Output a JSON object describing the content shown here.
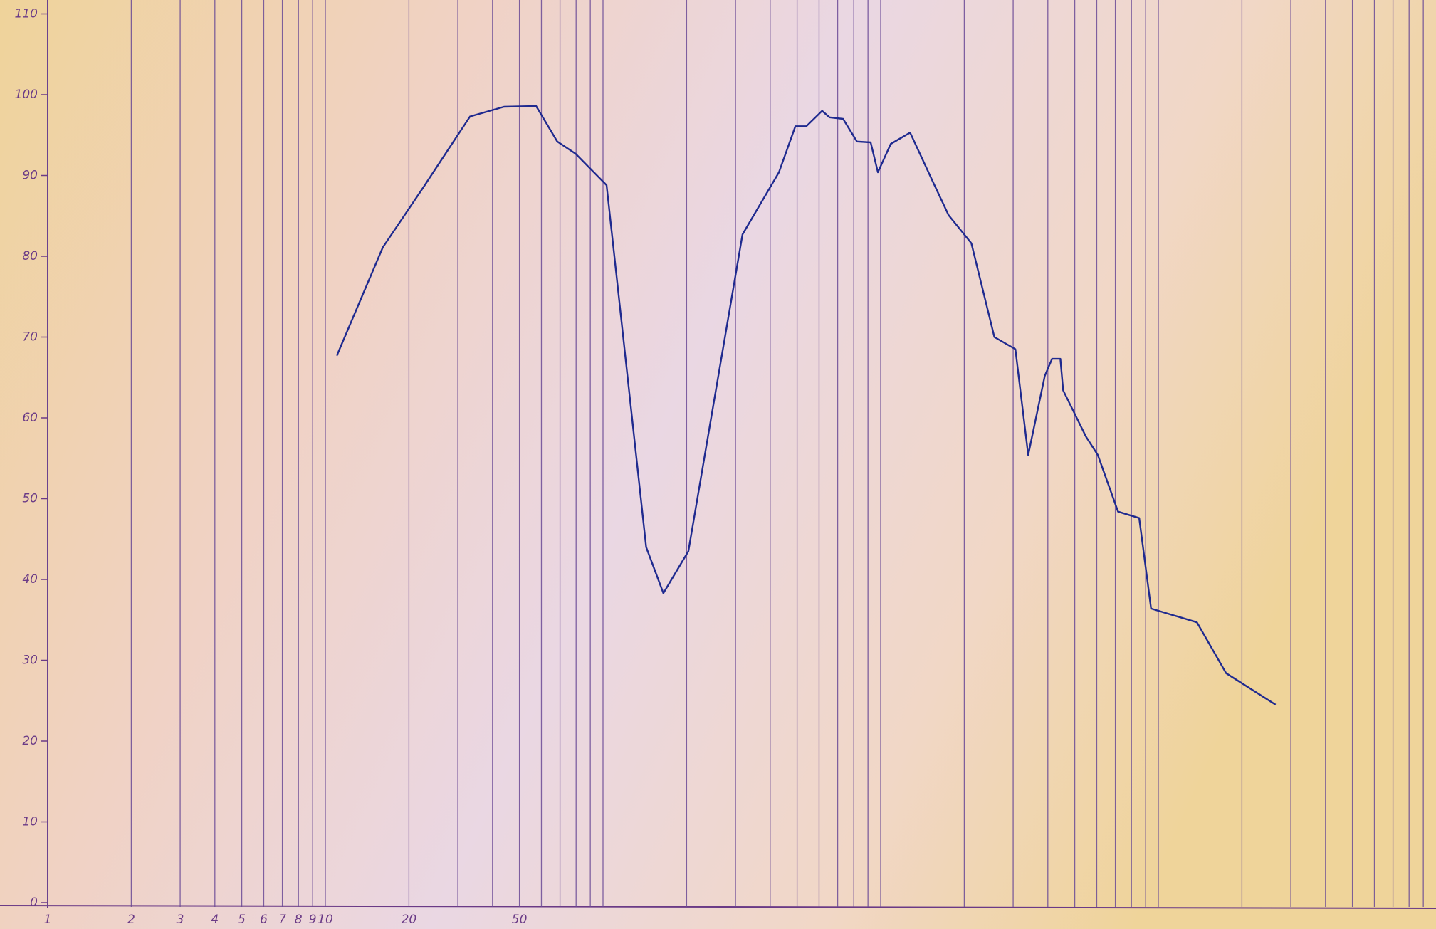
{
  "chart_data": {
    "type": "line",
    "log_x": true,
    "color": "#1f2a8f",
    "grid": true,
    "x": [
      11,
      16.1,
      22.6,
      33.2,
      44,
      57.4,
      68.4,
      79.6,
      103,
      112,
      143,
      165,
      203,
      318,
      430,
      493,
      540,
      615,
      654,
      732,
      821,
      920,
      977,
      1087,
      1276,
      1567,
      1755,
      2122,
      2567,
      3055,
      3398,
      3900,
      4142,
      4437,
      4540,
      5483,
      6053,
      7160,
      8533,
      9415,
      13770,
      17540,
      26440
    ],
    "values": [
      67.7,
      81.1,
      88.6,
      97.3,
      98.5,
      98.6,
      94.2,
      92.7,
      88.8,
      77.4,
      44.0,
      38.3,
      43.5,
      82.7,
      90.4,
      96.1,
      96.1,
      98.0,
      97.2,
      97.0,
      94.2,
      94.1,
      90.4,
      93.9,
      95.3,
      88.7,
      85.1,
      81.6,
      70.0,
      68.5,
      55.4,
      65.2,
      67.3,
      67.3,
      63.4,
      57.7,
      55.4,
      48.4,
      47.6,
      36.4,
      34.7,
      28.4,
      24.5
    ],
    "xlim": [
      1,
      100000
    ],
    "ylim": [
      0,
      110
    ],
    "xticks": [
      1,
      2,
      3,
      4,
      5,
      6,
      7,
      8,
      9,
      10,
      20,
      50
    ],
    "yticks": [
      0,
      10,
      20,
      30,
      40,
      50,
      60,
      70,
      80,
      90,
      100,
      110
    ],
    "x_grid": [
      1,
      2,
      3,
      4,
      5,
      6,
      7,
      8,
      9,
      10,
      20,
      30,
      40,
      50,
      60,
      70,
      80,
      90,
      100,
      200,
      300,
      400,
      500,
      600,
      700,
      800,
      900,
      1000,
      2000,
      3000,
      4000,
      5000,
      6000,
      7000,
      8000,
      9000,
      10000,
      20000,
      30000,
      40000,
      50000,
      60000,
      70000,
      80000,
      90000
    ]
  }
}
